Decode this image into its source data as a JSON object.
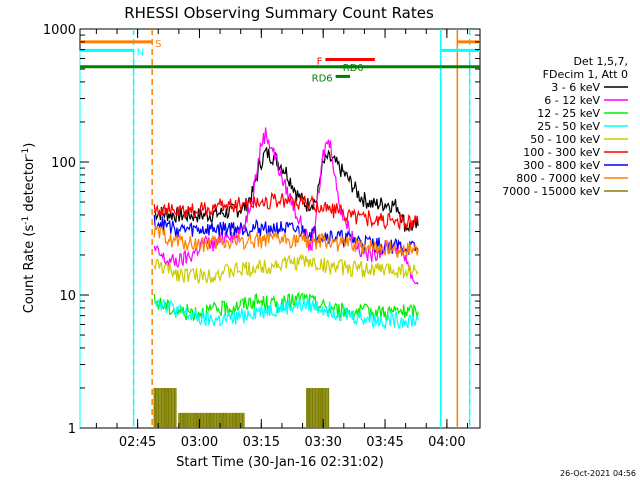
{
  "chart_data": {
    "type": "line",
    "title": "RHESSI Observing Summary Count Rates",
    "xlabel": "Start Time (30-Jan-16 02:31:02)",
    "ylabel": "Count Rate (s⁻¹ detector⁻¹)",
    "ylabel_parts": [
      "Count Rate (s",
      "-1",
      " detector",
      "-1",
      ")"
    ],
    "y_scale": "log",
    "ylim": [
      1,
      1000
    ],
    "xlim_minutes": [
      0,
      97
    ],
    "x_tick_labels": [
      "02:45",
      "03:00",
      "03:15",
      "03:30",
      "03:45",
      "04:00"
    ],
    "x_tick_minutes": [
      13.97,
      28.97,
      43.97,
      58.97,
      73.97,
      88.97
    ],
    "y_tick_labels": [
      "1",
      "10",
      "100",
      "1000"
    ],
    "y_tick_values": [
      1,
      10,
      100,
      1000
    ],
    "legend_header": [
      "Det 1,5,7,",
      "FDecim 1, Att 0"
    ],
    "legend_placement": "right",
    "series": [
      {
        "name": "3 - 6 keV",
        "color": "#000000",
        "x": [
          18,
          24,
          30,
          36,
          40,
          42,
          43.5,
          45,
          47,
          50,
          53,
          55,
          57.5,
          58.5,
          60,
          62,
          65,
          68,
          71,
          74,
          77,
          79,
          82
        ],
        "y": [
          42,
          40,
          40,
          42,
          46,
          60,
          95,
          118,
          110,
          85,
          55,
          48,
          52,
          90,
          108,
          98,
          75,
          55,
          48,
          49,
          47,
          33,
          33
        ]
      },
      {
        "name": "6 - 12 keV",
        "color": "#ff00ff",
        "x": [
          18,
          21,
          24,
          27,
          30,
          33,
          36,
          38,
          40,
          42,
          44,
          45,
          47,
          49,
          52,
          54,
          56,
          58,
          59,
          60,
          61,
          62.5,
          64,
          66,
          68,
          70,
          73,
          76,
          79,
          80,
          81,
          82
        ],
        "y": [
          22,
          18,
          18,
          20,
          25,
          24,
          30,
          27,
          35,
          60,
          140,
          165,
          120,
          75,
          45,
          32,
          22,
          60,
          115,
          145,
          130,
          55,
          38,
          28,
          22,
          20,
          22,
          24,
          20,
          15,
          13,
          12
        ]
      },
      {
        "name": "12 - 25 keV",
        "color": "#00ee00",
        "x": [
          18,
          24,
          30,
          36,
          42,
          48,
          54,
          60,
          66,
          72,
          78,
          82
        ],
        "y": [
          9,
          7.5,
          7.5,
          8,
          9,
          8.5,
          9.5,
          8,
          7.5,
          7.5,
          7.5,
          7.5
        ]
      },
      {
        "name": "25 - 50 keV",
        "color": "#00ffff",
        "x": [
          18,
          24,
          30,
          36,
          42,
          48,
          54,
          60,
          66,
          72,
          78,
          82
        ],
        "y": [
          9.5,
          7.5,
          6.5,
          6.5,
          7.5,
          8,
          8.5,
          8,
          7,
          6.5,
          6.5,
          6.5
        ]
      },
      {
        "name": "50 - 100 keV",
        "color": "#cccc00",
        "x": [
          18,
          24,
          30,
          36,
          42,
          48,
          54,
          60,
          66,
          72,
          78,
          82
        ],
        "y": [
          17,
          14.5,
          14,
          15,
          16,
          17,
          18,
          16.5,
          16,
          15.5,
          15.5,
          15
        ]
      },
      {
        "name": "100 - 300 keV",
        "color": "#ff0000",
        "x": [
          18,
          24,
          30,
          36,
          42,
          48,
          54,
          60,
          66,
          72,
          78,
          82
        ],
        "y": [
          46,
          42,
          44,
          48,
          50,
          52,
          50,
          45,
          40,
          37,
          35,
          35
        ]
      },
      {
        "name": "300 - 800 keV",
        "color": "#0000ff",
        "x": [
          18,
          24,
          30,
          36,
          42,
          48,
          54,
          60,
          66,
          72,
          78,
          82
        ],
        "y": [
          36,
          31,
          31,
          32,
          32,
          32,
          30,
          28,
          26,
          24,
          23,
          22
        ]
      },
      {
        "name": "800 - 7000 keV",
        "color": "#ff8000",
        "x": [
          18,
          24,
          30,
          36,
          42,
          48,
          54,
          60,
          66,
          72,
          78,
          82
        ],
        "y": [
          30,
          25,
          24,
          25,
          26,
          26,
          26,
          25,
          24,
          23,
          22,
          22
        ]
      },
      {
        "name": "7000 - 15000 keV",
        "color": "#808000",
        "x": [
          18,
          23.5,
          24,
          40,
          55,
          60.5
        ],
        "y": [
          2,
          2,
          1.3,
          2,
          2,
          1.3
        ]
      }
    ],
    "flags": [
      {
        "label": "S",
        "color": "#ff8000",
        "segments": [
          [
            0,
            17.5
          ],
          [
            91.5,
            97
          ]
        ],
        "y_level": 800
      },
      {
        "label": "N",
        "color": "#00ffff",
        "segments": [
          [
            0,
            13
          ],
          [
            87.5,
            97
          ]
        ],
        "y_level": 690
      },
      {
        "label": "",
        "color": "#008000",
        "segments": [
          [
            0,
            97
          ]
        ],
        "y_level": 520
      },
      {
        "label": "F",
        "color": "#ff0000",
        "segments": [
          [
            59.5,
            71.5
          ]
        ],
        "y_level": 590
      },
      {
        "label": "RD0",
        "color": "#008000",
        "segments": [
          [
            63,
            67.5
          ]
        ],
        "y_level": 520
      },
      {
        "label": "RD6",
        "color": "#008000",
        "segments": [
          [
            62,
            65.5
          ]
        ],
        "y_level": 440
      }
    ],
    "vertical_markers": [
      {
        "color": "#00ffff",
        "style": "dashed",
        "x": 13
      },
      {
        "color": "#ff8000",
        "style": "dashed",
        "x": 17.5
      },
      {
        "color": "#00ffff",
        "style": "solid",
        "x": 87.5
      },
      {
        "color": "#ff8000",
        "style": "solid",
        "x": 91.5
      },
      {
        "color": "#00ffff",
        "style": "dashed",
        "x": 94.5
      }
    ],
    "night_spans": [
      {
        "color": "#00ffff",
        "x": [
          0,
          13
        ]
      },
      {
        "color": "#00ffff",
        "x": [
          87.5,
          94.5
        ]
      }
    ]
  },
  "timestamp": "26-Oct-2021 04:56"
}
